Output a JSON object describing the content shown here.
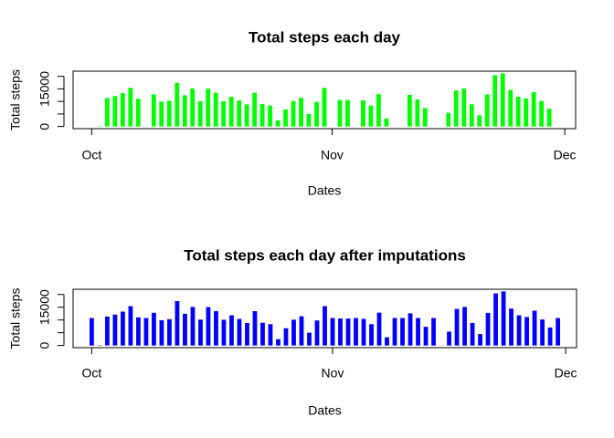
{
  "chart_data": [
    {
      "type": "bar",
      "title": "Total steps each day",
      "xlabel": "Dates",
      "ylabel": "Total steps",
      "color": "#00ff00",
      "x": [
        0,
        1,
        2,
        3,
        4,
        5,
        6,
        7,
        8,
        9,
        10,
        11,
        12,
        13,
        14,
        15,
        16,
        17,
        18,
        19,
        20,
        21,
        22,
        23,
        24,
        25,
        26,
        27,
        28,
        29,
        30,
        31,
        32,
        33,
        34,
        35,
        36,
        37,
        38,
        39,
        40,
        41,
        42,
        43,
        44,
        45,
        46,
        47,
        48,
        49,
        50,
        51,
        52,
        53,
        54,
        55,
        56,
        57,
        58,
        59,
        60
      ],
      "values": [
        0,
        126,
        11352,
        12116,
        13294,
        15420,
        11015,
        0,
        12811,
        9900,
        10304,
        17382,
        12426,
        15098,
        10139,
        15084,
        13452,
        10056,
        11829,
        10395,
        8821,
        13460,
        8918,
        8355,
        2492,
        6778,
        10119,
        11458,
        5018,
        9819,
        15414,
        0,
        10600,
        10571,
        0,
        10439,
        8334,
        12883,
        3219,
        0,
        0,
        12608,
        10765,
        7336,
        0,
        41,
        5441,
        14339,
        15110,
        8841,
        4472,
        12787,
        20427,
        21194,
        14478,
        11834,
        11162,
        13646,
        10183,
        7047,
        0
      ],
      "xlim": [
        -2.4,
        62.4
      ],
      "xticks": [
        {
          "value": 0,
          "label": "Oct"
        },
        {
          "value": 31,
          "label": "Nov"
        },
        {
          "value": 61,
          "label": "Dec"
        }
      ],
      "ylim": [
        -848,
        22042
      ],
      "yticks": [
        0,
        {
          "value": 5000,
          "label": null
        },
        {
          "value": 10000,
          "label": null
        },
        15000,
        {
          "value": 20000,
          "label": null
        }
      ]
    },
    {
      "type": "bar",
      "title": "Total steps each day after imputations",
      "xlabel": "Dates",
      "ylabel": "Total steps",
      "color": "#0000ff",
      "x": [
        0,
        1,
        2,
        3,
        4,
        5,
        6,
        7,
        8,
        9,
        10,
        11,
        12,
        13,
        14,
        15,
        16,
        17,
        18,
        19,
        20,
        21,
        22,
        23,
        24,
        25,
        26,
        27,
        28,
        29,
        30,
        31,
        32,
        33,
        34,
        35,
        36,
        37,
        38,
        39,
        40,
        41,
        42,
        43,
        44,
        45,
        46,
        47,
        48,
        49,
        50,
        51,
        52,
        53,
        54,
        55,
        56,
        57,
        58,
        59,
        60
      ],
      "values": [
        10766,
        126,
        11352,
        12116,
        13294,
        15420,
        11015,
        10766,
        12811,
        9900,
        10304,
        17382,
        12426,
        15098,
        10139,
        15084,
        13452,
        10056,
        11829,
        10395,
        8821,
        13460,
        8918,
        8355,
        2492,
        6778,
        10119,
        11458,
        5018,
        9819,
        15414,
        10766,
        10600,
        10571,
        10766,
        10439,
        8334,
        12883,
        3219,
        10766,
        10766,
        12608,
        10765,
        7336,
        10766,
        41,
        5441,
        14339,
        15110,
        8841,
        4472,
        12787,
        20427,
        21194,
        14478,
        11834,
        11162,
        13646,
        10183,
        7047,
        10766
      ],
      "xlim": [
        -2.4,
        62.4
      ],
      "xticks": [
        {
          "value": 0,
          "label": "Oct"
        },
        {
          "value": 31,
          "label": "Nov"
        },
        {
          "value": 61,
          "label": "Dec"
        }
      ],
      "ylim": [
        -848,
        22042
      ],
      "yticks": [
        0,
        {
          "value": 5000,
          "label": null
        },
        {
          "value": 10000,
          "label": null
        },
        15000,
        {
          "value": 20000,
          "label": null
        }
      ]
    }
  ]
}
